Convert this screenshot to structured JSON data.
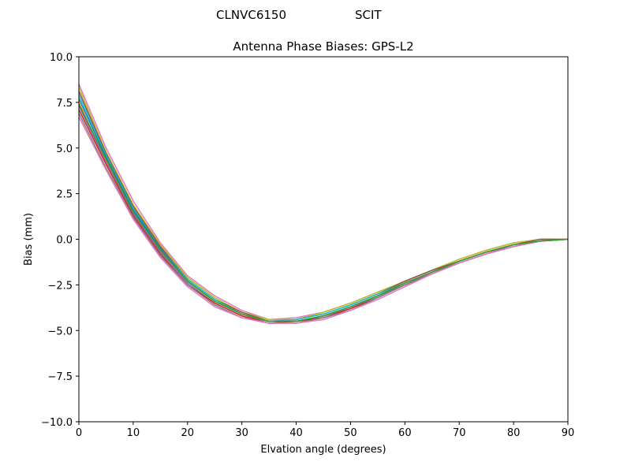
{
  "chart_data": {
    "type": "line",
    "suptitle_left": "CLNVC6150",
    "suptitle_right": "SCIT",
    "title": "Antenna Phase Biases: GPS-L2",
    "xlabel": "Elvation angle (degrees)",
    "ylabel": "Bias (mm)",
    "xlim": [
      0,
      90
    ],
    "ylim": [
      -10,
      10
    ],
    "xticks": [
      0,
      10,
      20,
      30,
      40,
      50,
      60,
      70,
      80,
      90
    ],
    "xtick_labels": [
      "0",
      "10",
      "20",
      "30",
      "40",
      "50",
      "60",
      "70",
      "80",
      "90"
    ],
    "yticks": [
      10,
      7.5,
      5,
      2.5,
      0,
      -2.5,
      -5,
      -7.5,
      -10
    ],
    "ytick_labels": [
      "10.0",
      "7.5",
      "5.0",
      "2.5",
      "0.0",
      "−2.5",
      "−5.0",
      "−7.5",
      "−10.0"
    ],
    "grid": false,
    "x": [
      0,
      5,
      10,
      15,
      20,
      25,
      30,
      35,
      40,
      45,
      50,
      55,
      60,
      65,
      70,
      75,
      80,
      85,
      90
    ],
    "series": [
      {
        "color": "#e377c2",
        "values": [
          8.5,
          5.0,
          2.1,
          -0.2,
          -2.0,
          -3.1,
          -3.9,
          -4.4,
          -4.3,
          -4.0,
          -3.5,
          -2.9,
          -2.3,
          -1.7,
          -1.1,
          -0.6,
          -0.2,
          0.0,
          0.0
        ]
      },
      {
        "color": "#bcbd22",
        "values": [
          8.3,
          4.8,
          1.9,
          -0.3,
          -2.1,
          -3.2,
          -4.0,
          -4.4,
          -4.4,
          -4.0,
          -3.5,
          -2.9,
          -2.3,
          -1.7,
          -1.1,
          -0.6,
          -0.2,
          0.0,
          0.0
        ]
      },
      {
        "color": "#8c564b",
        "values": [
          8.1,
          4.7,
          1.8,
          -0.4,
          -2.2,
          -3.3,
          -4.0,
          -4.5,
          -4.4,
          -4.1,
          -3.6,
          -3.0,
          -2.3,
          -1.7,
          -1.2,
          -0.7,
          -0.3,
          0.0,
          0.0
        ]
      },
      {
        "color": "#17becf",
        "values": [
          7.9,
          4.6,
          1.7,
          -0.5,
          -2.2,
          -3.3,
          -4.1,
          -4.5,
          -4.4,
          -4.1,
          -3.6,
          -3.0,
          -2.4,
          -1.8,
          -1.2,
          -0.7,
          -0.3,
          -0.1,
          0.0
        ]
      },
      {
        "color": "#1f77b4",
        "values": [
          7.7,
          4.5,
          1.6,
          -0.5,
          -2.3,
          -3.4,
          -4.1,
          -4.5,
          -4.5,
          -4.2,
          -3.7,
          -3.1,
          -2.4,
          -1.8,
          -1.2,
          -0.7,
          -0.3,
          -0.1,
          0.0
        ]
      },
      {
        "color": "#ff7f0e",
        "values": [
          7.5,
          4.3,
          1.5,
          -0.6,
          -2.3,
          -3.4,
          -4.1,
          -4.5,
          -4.5,
          -4.2,
          -3.7,
          -3.1,
          -2.4,
          -1.8,
          -1.2,
          -0.7,
          -0.3,
          -0.1,
          0.0
        ]
      },
      {
        "color": "#9467bd",
        "values": [
          7.3,
          4.2,
          1.4,
          -0.7,
          -2.4,
          -3.5,
          -4.2,
          -4.5,
          -4.5,
          -4.2,
          -3.8,
          -3.1,
          -2.5,
          -1.8,
          -1.3,
          -0.8,
          -0.3,
          -0.1,
          0.0
        ]
      },
      {
        "color": "#d62728",
        "values": [
          7.1,
          4.1,
          1.3,
          -0.8,
          -2.5,
          -3.5,
          -4.2,
          -4.6,
          -4.5,
          -4.3,
          -3.8,
          -3.2,
          -2.5,
          -1.9,
          -1.3,
          -0.8,
          -0.4,
          -0.1,
          0.0
        ]
      },
      {
        "color": "#7f7f7f",
        "values": [
          6.9,
          3.9,
          1.2,
          -0.9,
          -2.5,
          -3.6,
          -4.3,
          -4.6,
          -4.6,
          -4.3,
          -3.9,
          -3.2,
          -2.5,
          -1.9,
          -1.3,
          -0.8,
          -0.4,
          -0.1,
          0.0
        ]
      },
      {
        "color": "#e377c2",
        "values": [
          6.7,
          3.8,
          1.1,
          -1.0,
          -2.6,
          -3.7,
          -4.3,
          -4.6,
          -4.6,
          -4.4,
          -3.9,
          -3.3,
          -2.6,
          -1.9,
          -1.3,
          -0.8,
          -0.4,
          -0.1,
          0.0
        ]
      },
      {
        "color": "#2ca02c",
        "values": [
          7.4,
          4.4,
          1.5,
          -0.6,
          -2.3,
          -3.4,
          -4.1,
          -4.5,
          -4.5,
          -4.2,
          -3.7,
          -3.1,
          -2.4,
          -1.8,
          -1.2,
          -0.7,
          -0.3,
          -0.1,
          0.0
        ]
      }
    ]
  }
}
